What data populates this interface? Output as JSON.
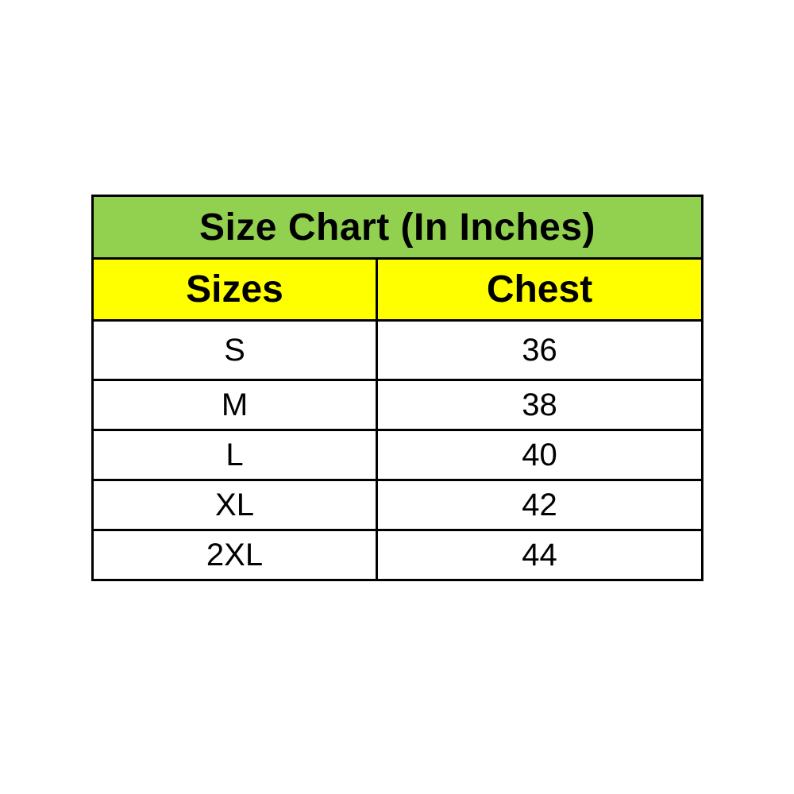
{
  "page": {
    "background_color": "#ffffff"
  },
  "table": {
    "title": "Size Chart (In Inches)",
    "title_bg_color": "#92d050",
    "header_bg_color": "#ffff00",
    "border_color": "#000000",
    "row_bg_color": "#ffffff",
    "columns": [
      "Sizes",
      "Chest"
    ],
    "rows": [
      {
        "size": "S",
        "chest": "36"
      },
      {
        "size": "M",
        "chest": "38"
      },
      {
        "size": "L",
        "chest": "40"
      },
      {
        "size": "XL",
        "chest": "42"
      },
      {
        "size": "2XL",
        "chest": "44"
      }
    ]
  },
  "chart_data": {
    "type": "table",
    "title": "Size Chart (In Inches)",
    "columns": [
      "Sizes",
      "Chest"
    ],
    "rows": [
      [
        "S",
        36
      ],
      [
        "M",
        38
      ],
      [
        "L",
        40
      ],
      [
        "XL",
        42
      ],
      [
        "2XL",
        44
      ]
    ],
    "layout_hints": {
      "title_background": "#92d050",
      "header_background": "#ffff00",
      "body_background": "#ffffff",
      "border": "black solid",
      "alignment": "center"
    }
  }
}
